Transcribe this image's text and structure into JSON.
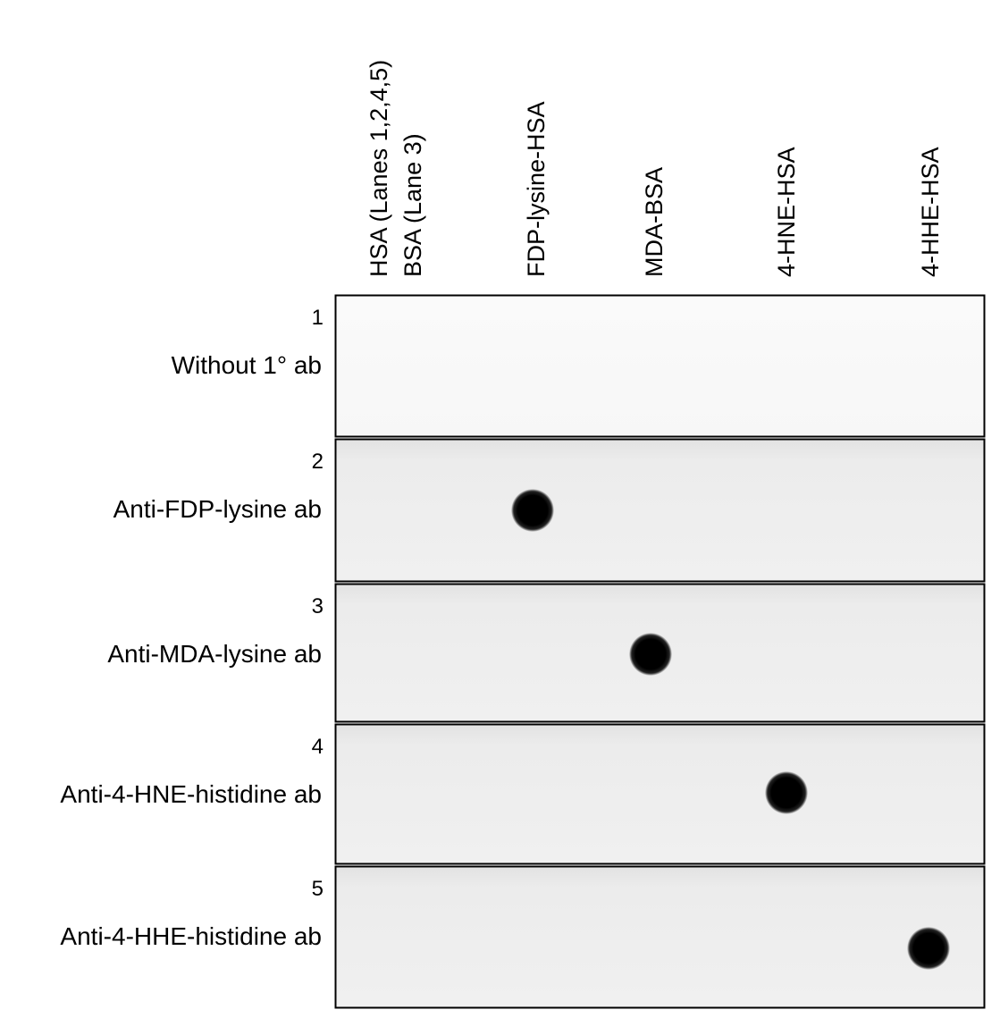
{
  "columns": [
    "HSA (Lanes 1,2,4,5)",
    "BSA (Lane 3)",
    "FDP-lysine-HSA",
    "MDA-BSA",
    "4-HNE-HSA",
    "4-HHE-HSA"
  ],
  "rows": [
    {
      "number": 1,
      "label": "Without 1° ab"
    },
    {
      "number": 2,
      "label": "Anti-FDP-lysine ab"
    },
    {
      "number": 3,
      "label": "Anti-MDA-lysine ab"
    },
    {
      "number": 4,
      "label": "Anti-4-HNE-histidine ab"
    },
    {
      "number": 5,
      "label": "Anti-4-HHE-histidine ab"
    }
  ]
}
